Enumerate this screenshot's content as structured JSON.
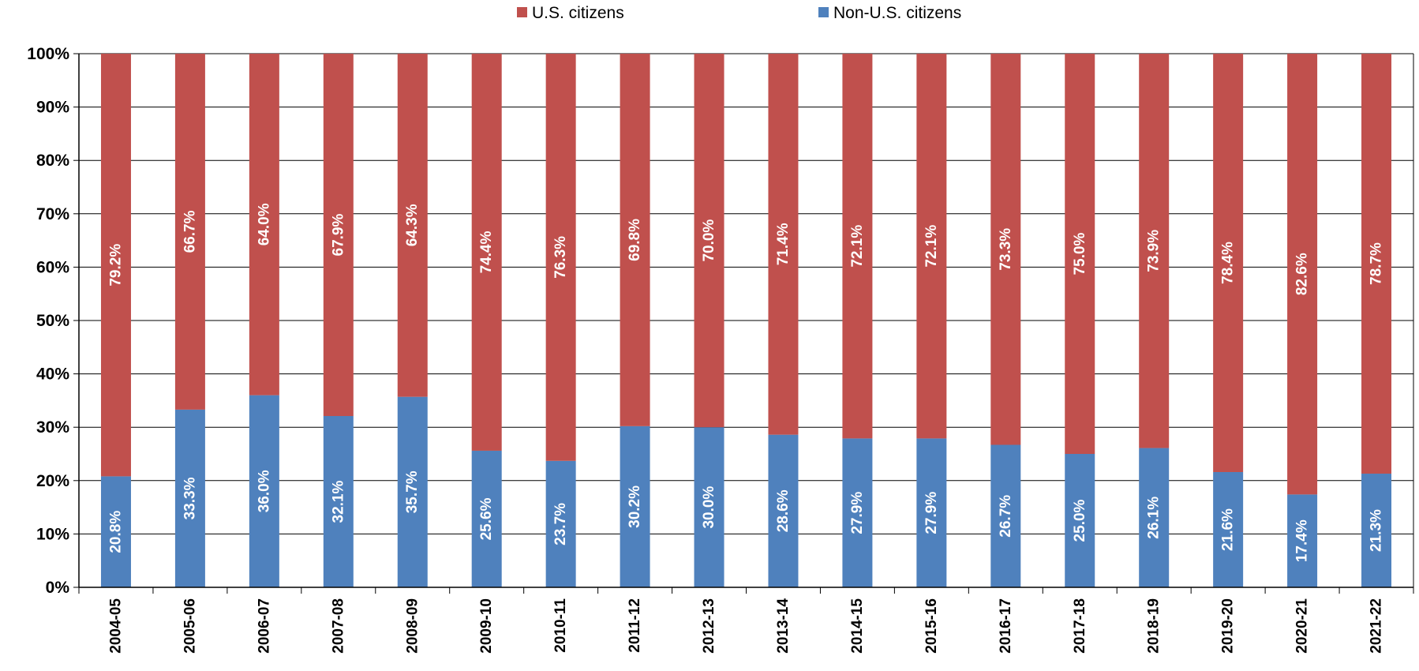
{
  "chart_data": {
    "type": "bar",
    "stacked": true,
    "categories": [
      "2004-05",
      "2005-06",
      "2006-07",
      "2007-08",
      "2008-09",
      "2009-10",
      "2010-11",
      "2011-12",
      "2012-13",
      "2013-14",
      "2014-15",
      "2015-16",
      "2016-17",
      "2017-18",
      "2018-19",
      "2019-20",
      "2020-21",
      "2021-22"
    ],
    "series": [
      {
        "name": "Non-U.S. citizens",
        "color": "#4f81bd",
        "values": [
          20.8,
          33.3,
          36.0,
          32.1,
          35.7,
          25.6,
          23.7,
          30.2,
          30.0,
          28.6,
          27.9,
          27.9,
          26.7,
          25.0,
          26.1,
          21.6,
          17.4,
          21.3
        ]
      },
      {
        "name": "U.S. citizens",
        "color": "#c0504d",
        "values": [
          79.2,
          66.7,
          64.0,
          67.9,
          64.3,
          74.4,
          76.3,
          69.8,
          70.0,
          71.4,
          72.1,
          72.1,
          73.3,
          75.0,
          73.9,
          78.4,
          82.6,
          78.7
        ]
      }
    ],
    "legend_order": [
      "U.S. citizens",
      "Non-U.S. citizens"
    ],
    "legend_position": "top",
    "ylim": [
      0,
      100
    ],
    "yticks": [
      0,
      10,
      20,
      30,
      40,
      50,
      60,
      70,
      80,
      90,
      100
    ],
    "ytick_suffix": "%",
    "grid": true,
    "title": "",
    "xlabel": "",
    "ylabel": ""
  }
}
